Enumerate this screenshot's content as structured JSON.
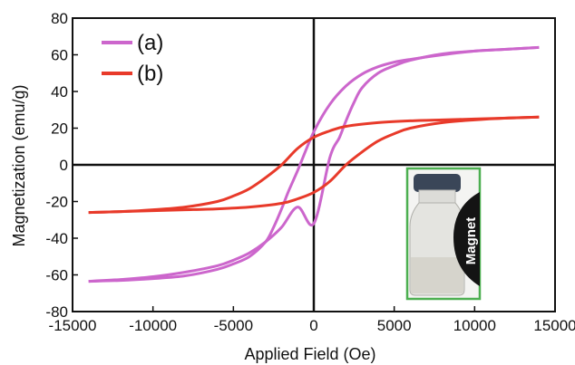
{
  "chart_data": {
    "type": "line",
    "xlabel": "Applied Field (Oe)",
    "ylabel": "Magnetization (emu/g)",
    "xlim": [
      -15000,
      15000
    ],
    "ylim": [
      -80,
      80
    ],
    "xticks": [
      -15000,
      -10000,
      -5000,
      0,
      5000,
      10000,
      15000
    ],
    "yticks": [
      -80,
      -60,
      -40,
      -20,
      0,
      20,
      40,
      60,
      80
    ],
    "grid": false,
    "legend_position": "top-left",
    "series": [
      {
        "name": "(a)",
        "color": "#cc66cc",
        "descending": {
          "x": [
            14000,
            12000,
            10000,
            8000,
            6000,
            5000,
            4000,
            3000,
            2000,
            1000,
            0,
            -1000,
            -1600,
            -2000,
            -2500,
            -3000,
            -4000,
            -5000,
            -6000,
            -8000,
            -10000,
            -12000,
            -14000
          ],
          "y": [
            64,
            63,
            62,
            60,
            57.5,
            56,
            53.5,
            49.5,
            43,
            33,
            18,
            -3,
            -15,
            -24,
            -34,
            -42,
            -50,
            -54,
            -57,
            -60.5,
            -62,
            -63,
            -63.5
          ]
        },
        "ascending": {
          "x": [
            -14000,
            -12000,
            -10000,
            -8000,
            -6000,
            -5000,
            -4000,
            -3000,
            -2000,
            -1000,
            0,
            1000,
            1600,
            2000,
            2500,
            3000,
            4000,
            5000,
            6000,
            8000,
            10000,
            12000,
            14000
          ],
          "y": [
            -63.5,
            -62.5,
            -61,
            -58.5,
            -55,
            -52,
            -48,
            -42,
            -34,
            -23,
            -32,
            4,
            15,
            24,
            34,
            42,
            50,
            54,
            57,
            60.5,
            62,
            63,
            64
          ]
        }
      },
      {
        "name": "(b)",
        "color": "#e83a2a",
        "descending": {
          "x": [
            14000,
            12000,
            10000,
            8000,
            6000,
            4000,
            2000,
            1000,
            0,
            -1000,
            -2000,
            -3000,
            -4000,
            -5000,
            -6000,
            -8000,
            -10000,
            -12000,
            -14000
          ],
          "y": [
            26,
            25.5,
            25,
            24.5,
            24,
            23,
            21,
            18.5,
            15,
            9,
            0,
            -7,
            -13,
            -17,
            -20,
            -23,
            -24.5,
            -25.5,
            -26
          ]
        },
        "ascending": {
          "x": [
            -14000,
            -12000,
            -10000,
            -8000,
            -6000,
            -4000,
            -2000,
            -1000,
            0,
            1000,
            2000,
            3000,
            4000,
            5000,
            6000,
            8000,
            10000,
            12000,
            14000
          ],
          "y": [
            -26,
            -25.5,
            -25,
            -24.5,
            -24,
            -23,
            -21,
            -18.5,
            -15,
            -9,
            0,
            7,
            13,
            17,
            20,
            23,
            24.5,
            25.5,
            26
          ]
        }
      }
    ],
    "inset": {
      "label": "Magnet",
      "border_color": "#4caf50"
    }
  }
}
